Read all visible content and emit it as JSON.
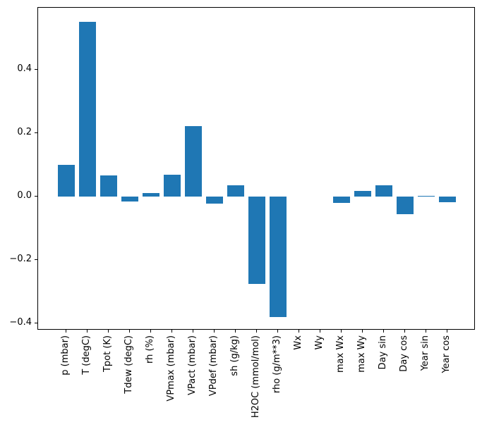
{
  "chart_data": {
    "type": "bar",
    "title": "",
    "xlabel": "",
    "ylabel": "",
    "grid": false,
    "legend": null,
    "bar_color": "#1f77b4",
    "bar_width_frac": 0.8,
    "ylim": [
      -0.423,
      0.595
    ],
    "yticks": [
      0.4,
      0.2,
      0.0,
      -0.2,
      -0.4
    ],
    "ytick_labels": [
      "0.4",
      "0.2",
      "0.0",
      "−0.2",
      "−0.4"
    ],
    "categories": [
      "p (mbar)",
      "T (degC)",
      "Tpot (K)",
      "Tdew (degC)",
      "rh (%)",
      "VPmax (mbar)",
      "VPact (mbar)",
      "VPdef (mbar)",
      "sh (g/kg)",
      "H2OC (mmol/mol)",
      "rho (g/m**3)",
      "Wx",
      "Wy",
      "max Wx",
      "max Wy",
      "Day sin",
      "Day cos",
      "Year sin",
      "Year cos"
    ],
    "values": [
      0.1,
      0.55,
      0.066,
      -0.017,
      0.011,
      0.069,
      0.221,
      -0.023,
      0.035,
      -0.276,
      -0.381,
      0.0,
      0.0,
      -0.02,
      0.017,
      0.035,
      -0.057,
      0.002,
      -0.018
    ]
  }
}
